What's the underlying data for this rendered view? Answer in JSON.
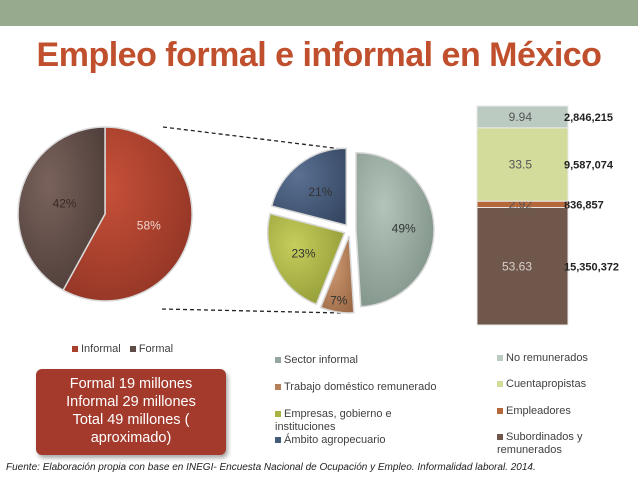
{
  "title": "Empleo formal e informal en México",
  "colors": {
    "title": "#c0502d",
    "topbar": "#98aa8e",
    "informal": "#a9402e",
    "formal": "#5f4b47",
    "sector_informal": "#95a89e",
    "trabajo_domestico": "#b6805a",
    "empresas": "#aab341",
    "ambito_agro": "#455a78",
    "no_remunerados": "#bccbc2",
    "cuentapropistas": "#d4dc9c",
    "empleadores": "#b5683a",
    "subordinados": "#70574c"
  },
  "chart_data": [
    {
      "type": "pie",
      "slices": [
        {
          "label": "Informal",
          "value": 58,
          "text": "58%"
        },
        {
          "label": "Formal",
          "value": 42,
          "text": "42%"
        }
      ],
      "legend": [
        "Informal",
        "Formal"
      ],
      "legend_position": "bottom"
    },
    {
      "type": "pie",
      "slices": [
        {
          "label": "Sector informal",
          "value": 49,
          "text": "49%"
        },
        {
          "label": "Trabajo doméstico remunerado",
          "value": 7,
          "text": "7%"
        },
        {
          "label": "Empresas, gobierno e instituciones",
          "value": 23,
          "text": "23%"
        },
        {
          "label": "Ámbito agropecuario",
          "value": 21,
          "text": "21%"
        }
      ],
      "legend": [
        "Sector informal",
        "Trabajo doméstico remunerado",
        "Empresas, gobierno e instituciones",
        "Ámbito agropecuario"
      ],
      "legend_position": "bottom"
    },
    {
      "type": "bar",
      "stacked": true,
      "series": [
        {
          "name": "Subordinados y remunerados",
          "value": 53.63,
          "label": "53.63",
          "count": "15,350,372"
        },
        {
          "name": "Empleadores",
          "value": 2.92,
          "label": "2.92",
          "count": "836,857"
        },
        {
          "name": "Cuentapropistas",
          "value": 33.5,
          "label": "33.5",
          "count": "9,587,074"
        },
        {
          "name": "No remunerados",
          "value": 9.94,
          "label": "9.94",
          "count": "2,846,215"
        }
      ],
      "legend": [
        "No remunerados",
        "Cuentapropistas",
        "Empleadores",
        "Subordinados y remunerados"
      ],
      "legend_position": "right"
    }
  ],
  "summary": [
    "Formal 19 millones",
    "Informal 29 millones",
    "Total 49 millones (",
    "aproximado)"
  ],
  "source": "Fuente: Elaboración propia con base en INEGI- Encuesta Nacional de Ocupación y Empleo. Informalidad laboral. 2014."
}
